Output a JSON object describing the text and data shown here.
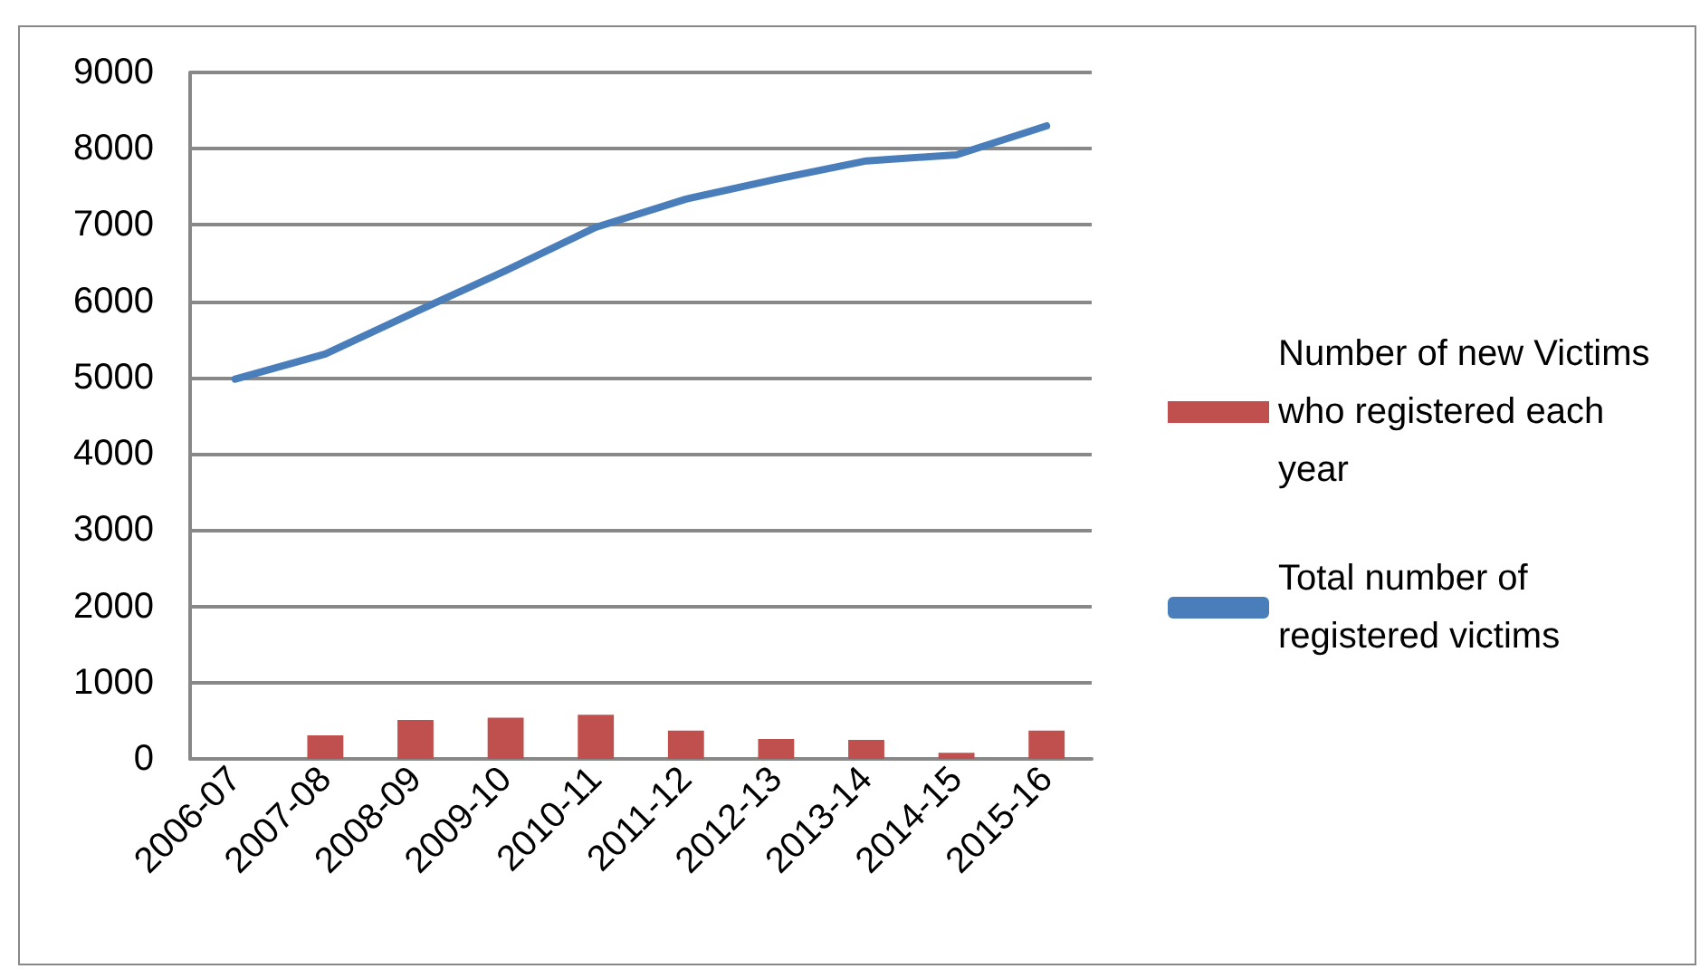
{
  "chart_data": {
    "type": "bar",
    "categories": [
      "2006-07",
      "2007-08",
      "2008-09",
      "2009-10",
      "2010-11",
      "2011-12",
      "2012-13",
      "2013-14",
      "2014-15",
      "2015-16"
    ],
    "series": [
      {
        "name": "Number of new Victims who registered each year",
        "color": "#c0504d",
        "values": [
          null,
          310,
          510,
          540,
          580,
          370,
          260,
          250,
          80,
          370
        ]
      },
      {
        "name": "Total number of registered victims",
        "type": "line",
        "color": "#4a7ebb",
        "values": [
          4980,
          5310,
          5860,
          6400,
          6970,
          7340,
          7600,
          7840,
          7920,
          8300
        ]
      }
    ],
    "ylim": [
      0,
      9000
    ],
    "yticks": [
      0,
      1000,
      2000,
      3000,
      4000,
      5000,
      6000,
      7000,
      8000,
      9000
    ],
    "grid": "y",
    "legend": "right",
    "marker": "none"
  }
}
